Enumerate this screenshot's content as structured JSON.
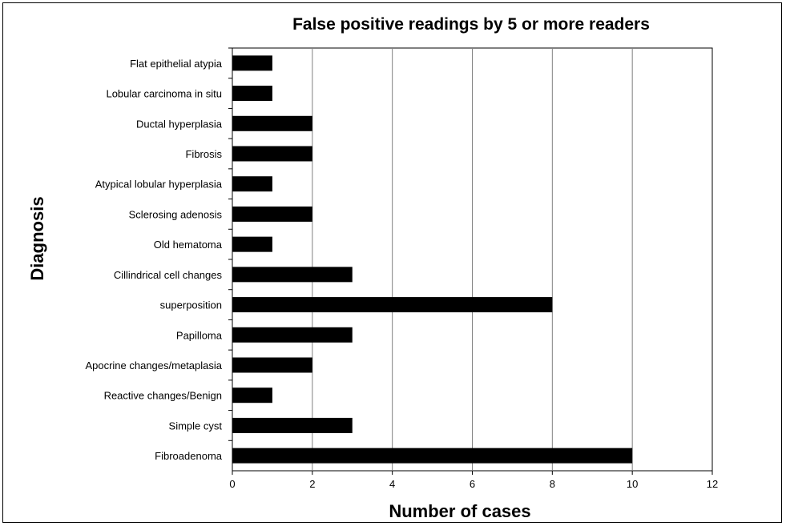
{
  "chart_data": {
    "type": "bar",
    "orientation": "horizontal",
    "title": "False positive readings by 5 or more readers",
    "xlabel": "Number of cases",
    "ylabel": "Diagnosis",
    "xlim": [
      0,
      12
    ],
    "xticks": [
      0,
      2,
      4,
      6,
      8,
      10,
      12
    ],
    "grid": "vertical",
    "bar_color": "#000000",
    "categories": [
      "Flat epithelial atypia",
      "Lobular carcinoma in situ",
      "Ductal hyperplasia",
      "Fibrosis",
      "Atypical lobular hyperplasia",
      "Sclerosing adenosis",
      "Old hematoma",
      "Cillindrical cell changes",
      "superposition",
      "Papilloma",
      "Apocrine changes/metaplasia",
      "Reactive changes/Benign",
      "Simple cyst",
      "Fibroadenoma"
    ],
    "values": [
      1,
      1,
      2,
      2,
      1,
      2,
      1,
      3,
      8,
      3,
      2,
      1,
      3,
      10
    ]
  }
}
